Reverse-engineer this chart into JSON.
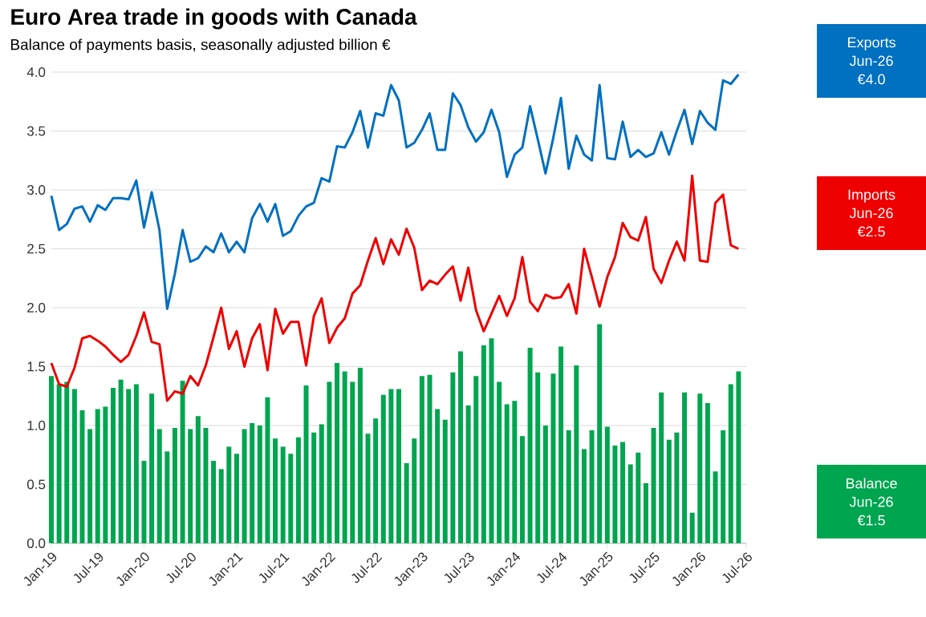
{
  "chart_data": {
    "type": "line",
    "title": "Euro Area trade in goods with Canada",
    "subtitle": "Balance of payments basis, seasonally adjusted billion €",
    "x": [
      "2019-01",
      "2019-02",
      "2019-03",
      "2019-04",
      "2019-05",
      "2019-06",
      "2019-07",
      "2019-08",
      "2019-09",
      "2019-10",
      "2019-11",
      "2019-12",
      "2020-01",
      "2020-02",
      "2020-03",
      "2020-04",
      "2020-05",
      "2020-06",
      "2020-07",
      "2020-08",
      "2020-09",
      "2020-10",
      "2020-11",
      "2020-12",
      "2021-01",
      "2021-02",
      "2021-03",
      "2021-04",
      "2021-05",
      "2021-06",
      "2021-07",
      "2021-08",
      "2021-09",
      "2021-10",
      "2021-11",
      "2021-12",
      "2022-01",
      "2022-02",
      "2022-03",
      "2022-04",
      "2022-05",
      "2022-06",
      "2022-07",
      "2022-08",
      "2022-09",
      "2022-10",
      "2022-11",
      "2022-12",
      "2023-01",
      "2023-02",
      "2023-03",
      "2023-04",
      "2023-05",
      "2023-06",
      "2023-07",
      "2023-08",
      "2023-09",
      "2023-10",
      "2023-11",
      "2023-12",
      "2024-01",
      "2024-02",
      "2024-03",
      "2024-04",
      "2024-05",
      "2024-06",
      "2024-07",
      "2024-08",
      "2024-09",
      "2024-10",
      "2024-11",
      "2024-12",
      "2025-01",
      "2025-02",
      "2025-03",
      "2025-04",
      "2025-05",
      "2025-06",
      "2025-07",
      "2025-08",
      "2025-09",
      "2025-10",
      "2025-11",
      "2025-12",
      "2026-01",
      "2026-02",
      "2026-03",
      "2026-04",
      "2026-05",
      "2026-06"
    ],
    "series": [
      {
        "name": "Exports",
        "color": "#0070c0",
        "values": [
          2.95,
          2.66,
          2.71,
          2.84,
          2.86,
          2.73,
          2.87,
          2.83,
          2.93,
          2.93,
          2.92,
          3.08,
          2.68,
          2.98,
          2.66,
          1.99,
          2.29,
          2.66,
          2.39,
          2.42,
          2.52,
          2.47,
          2.63,
          2.47,
          2.56,
          2.47,
          2.76,
          2.88,
          2.73,
          2.88,
          2.61,
          2.65,
          2.78,
          2.86,
          2.89,
          3.1,
          3.07,
          3.37,
          3.36,
          3.49,
          3.67,
          3.36,
          3.65,
          3.63,
          3.89,
          3.76,
          3.36,
          3.4,
          3.51,
          3.65,
          3.34,
          3.34,
          3.82,
          3.72,
          3.53,
          3.41,
          3.49,
          3.68,
          3.49,
          3.11,
          3.3,
          3.36,
          3.71,
          3.43,
          3.14,
          3.44,
          3.78,
          3.18,
          3.46,
          3.3,
          3.25,
          3.89,
          3.27,
          3.26,
          3.58,
          3.28,
          3.34,
          3.28,
          3.31,
          3.49,
          3.3,
          3.5,
          3.68,
          3.39,
          3.67,
          3.57,
          3.51,
          3.93,
          3.9,
          3.98
        ]
      },
      {
        "name": "Imports",
        "color": "#ee0000",
        "values": [
          1.53,
          1.35,
          1.33,
          1.49,
          1.74,
          1.76,
          1.72,
          1.67,
          1.6,
          1.54,
          1.6,
          1.76,
          1.96,
          1.71,
          1.69,
          1.21,
          1.29,
          1.27,
          1.42,
          1.34,
          1.51,
          1.75,
          2.0,
          1.65,
          1.8,
          1.5,
          1.74,
          1.86,
          1.47,
          1.99,
          1.78,
          1.88,
          1.88,
          1.51,
          1.93,
          2.08,
          1.7,
          1.83,
          1.91,
          2.12,
          2.19,
          2.4,
          2.59,
          2.37,
          2.58,
          2.45,
          2.67,
          2.51,
          2.15,
          2.23,
          2.2,
          2.28,
          2.35,
          2.06,
          2.34,
          1.98,
          1.8,
          1.95,
          2.1,
          1.93,
          2.08,
          2.43,
          2.05,
          1.97,
          2.11,
          2.08,
          2.09,
          2.2,
          1.95,
          2.5,
          2.26,
          2.01,
          2.26,
          2.43,
          2.72,
          2.6,
          2.57,
          2.77,
          2.33,
          2.21,
          2.4,
          2.56,
          2.4,
          3.12,
          2.4,
          2.39,
          2.89,
          2.96,
          2.53,
          2.5
        ]
      },
      {
        "name": "Balance",
        "type": "bar",
        "color": "#00a550",
        "values": [
          1.42,
          1.35,
          1.37,
          1.31,
          1.13,
          0.97,
          1.14,
          1.16,
          1.32,
          1.39,
          1.31,
          1.35,
          0.7,
          1.27,
          0.97,
          0.78,
          0.98,
          1.38,
          0.97,
          1.08,
          0.98,
          0.7,
          0.63,
          0.82,
          0.76,
          0.97,
          1.02,
          1.0,
          1.24,
          0.89,
          0.82,
          0.76,
          0.9,
          1.34,
          0.94,
          1.01,
          1.37,
          1.53,
          1.46,
          1.37,
          1.49,
          0.93,
          1.06,
          1.26,
          1.31,
          1.31,
          0.68,
          0.89,
          1.42,
          1.43,
          1.14,
          1.05,
          1.45,
          1.63,
          1.17,
          1.42,
          1.68,
          1.74,
          1.37,
          1.18,
          1.21,
          0.91,
          1.66,
          1.45,
          1.0,
          1.44,
          1.67,
          0.96,
          1.51,
          0.8,
          0.96,
          1.86,
          0.99,
          0.83,
          0.86,
          0.67,
          0.77,
          0.51,
          0.98,
          1.28,
          0.88,
          0.94,
          1.28,
          0.26,
          1.27,
          1.19,
          0.61,
          0.96,
          1.35,
          1.46
        ]
      }
    ],
    "xlim": [
      "2019-01",
      "2026-07"
    ],
    "xticks": [
      {
        "value": "2019-01",
        "label": "Jan-19"
      },
      {
        "value": "2019-07",
        "label": "Jul-19"
      },
      {
        "value": "2020-01",
        "label": "Jan-20"
      },
      {
        "value": "2020-07",
        "label": "Jul-20"
      },
      {
        "value": "2021-01",
        "label": "Jan-21"
      },
      {
        "value": "2021-07",
        "label": "Jul-21"
      },
      {
        "value": "2022-01",
        "label": "Jan-22"
      },
      {
        "value": "2022-07",
        "label": "Jul-22"
      },
      {
        "value": "2023-01",
        "label": "Jan-23"
      },
      {
        "value": "2023-07",
        "label": "Jul-23"
      },
      {
        "value": "2024-01",
        "label": "Jan-24"
      },
      {
        "value": "2024-07",
        "label": "Jul-24"
      },
      {
        "value": "2025-01",
        "label": "Jan-25"
      },
      {
        "value": "2025-07",
        "label": "Jul-25"
      },
      {
        "value": "2026-01",
        "label": "Jan-26"
      },
      {
        "value": "2026-07",
        "label": "Jul-26"
      }
    ],
    "ylim": [
      0,
      4
    ],
    "yticks": [
      {
        "value": 0,
        "label": "0.0"
      },
      {
        "value": 0.5,
        "label": "0.5"
      },
      {
        "value": 1,
        "label": "1.0"
      },
      {
        "value": 1.5,
        "label": "1.5"
      },
      {
        "value": 2,
        "label": "2.0"
      },
      {
        "value": 2.5,
        "label": "2.5"
      },
      {
        "value": 3,
        "label": "3.0"
      },
      {
        "value": 3.5,
        "label": "3.5"
      },
      {
        "value": 4,
        "label": "4.0"
      }
    ],
    "grid": "y",
    "legend": "right",
    "marker": "none",
    "line_style": "solid",
    "annotations": [
      "Jun-26",
      "€4.0",
      "Jun-26",
      "€2.5",
      "Jun-26",
      "€1.5"
    ]
  }
}
